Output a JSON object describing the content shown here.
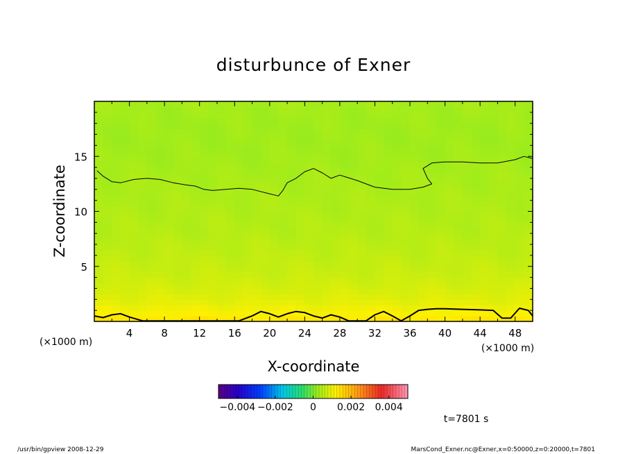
{
  "chart_data": {
    "type": "heatmap",
    "title": "disturbunce of Exner",
    "xlabel": "X-coordinate",
    "ylabel": "Z-coordinate",
    "x_unit": "(×1000 m)",
    "y_unit": "(×1000 m)",
    "xlim": [
      0,
      50
    ],
    "ylim": [
      0,
      20
    ],
    "x_ticks": [
      4,
      8,
      12,
      16,
      20,
      24,
      28,
      32,
      36,
      40,
      44,
      48
    ],
    "y_ticks": [
      5,
      10,
      15
    ],
    "colorbar": {
      "range": [
        -0.005,
        0.005
      ],
      "ticks": [
        -0.004,
        -0.002,
        0,
        0.002,
        0.004
      ],
      "tick_labels": [
        "−0.004",
        "−0.002",
        "0",
        "0.002",
        "0.004"
      ],
      "colormap": "rainbow"
    },
    "field_profile": {
      "z": [
        0,
        0.5,
        2,
        4,
        6,
        8,
        10,
        12,
        14,
        16,
        18,
        20
      ],
      "value": [
        0.0014,
        0.0012,
        0.0009,
        0.0007,
        0.0006,
        0.0005,
        0.00045,
        0.0004,
        0.00035,
        0.0003,
        0.0003,
        0.00035
      ]
    },
    "contour_level": 0.0004,
    "contour_upper": {
      "x": [
        0.3,
        1.0,
        2.0,
        3.0,
        4.5,
        6.0,
        7.5,
        9.0,
        10.5,
        11.5,
        12.5,
        13.5,
        15.0,
        16.5,
        18.0,
        19.5,
        21.0,
        21.5,
        22.0,
        23.0,
        24.0,
        25.0,
        26.0,
        27.0,
        28.0,
        30.0,
        32.0,
        34.0,
        36.0,
        37.5,
        38.5,
        38.0,
        37.5,
        38.5,
        40.0,
        42.0,
        44.0,
        46.0,
        48.0,
        49.0,
        50.0
      ],
      "z": [
        13.7,
        13.2,
        12.7,
        12.6,
        12.9,
        13.0,
        12.9,
        12.6,
        12.4,
        12.3,
        12.0,
        11.9,
        12.0,
        12.1,
        12.0,
        11.7,
        11.4,
        11.9,
        12.6,
        13.0,
        13.6,
        13.9,
        13.5,
        13.0,
        13.3,
        12.8,
        12.2,
        12.0,
        12.0,
        12.2,
        12.5,
        13.0,
        13.9,
        14.4,
        14.5,
        14.5,
        14.4,
        14.4,
        14.7,
        15.0,
        14.8
      ]
    },
    "contour_lower": {
      "x": [
        0.0,
        1.0,
        2.0,
        3.0,
        4.0,
        5.5,
        7.0,
        9.0,
        11.0,
        13.0,
        15.0,
        16.5,
        18.0,
        19.0,
        20.0,
        21.0,
        22.0,
        23.0,
        24.0,
        25.0,
        26.0,
        27.0,
        28.0,
        29.0,
        30.0,
        31.0,
        32.0,
        33.0,
        34.0,
        35.0,
        36.0,
        37.0,
        38.0,
        39.0,
        40.0,
        42.0,
        44.0,
        45.5,
        46.5,
        47.5,
        48.5,
        49.5,
        50.0
      ],
      "z": [
        0.5,
        0.35,
        0.6,
        0.7,
        0.4,
        0.05,
        0.05,
        0.05,
        0.05,
        0.05,
        0.05,
        0.05,
        0.5,
        0.9,
        0.7,
        0.4,
        0.7,
        0.9,
        0.8,
        0.5,
        0.3,
        0.6,
        0.4,
        0.05,
        0.05,
        0.05,
        0.6,
        0.9,
        0.5,
        0.05,
        0.5,
        1.0,
        1.1,
        1.15,
        1.15,
        1.1,
        1.05,
        1.0,
        0.3,
        0.3,
        1.2,
        1.0,
        0.5
      ]
    }
  },
  "footer": {
    "left": "/usr/bin/gpview   2008-12-29",
    "right": "MarsCond_Exner.nc@Exner,x=0:50000,z=0:20000,t=7801",
    "time": "t=7801 s"
  }
}
